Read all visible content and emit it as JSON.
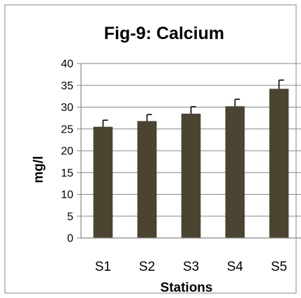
{
  "chart_data": {
    "type": "bar",
    "title": "Fig-9: Calcium",
    "xlabel": "Stations",
    "ylabel": "mg/l",
    "categories": [
      "S1",
      "S2",
      "S3",
      "S4",
      "S5"
    ],
    "values": [
      25.5,
      26.8,
      28.5,
      30.2,
      34.2
    ],
    "error_upper": [
      1.5,
      1.5,
      1.6,
      1.6,
      2.0
    ],
    "yticks": [
      "0",
      "5",
      "10",
      "15",
      "20",
      "25",
      "30",
      "35",
      "40"
    ],
    "ylim": [
      0,
      40
    ],
    "grid": true,
    "legend": "none",
    "colors": {
      "bar": "#4a4430",
      "grid": "#878787",
      "axis": "#878787",
      "frame": "#878787",
      "error": "#000000"
    }
  }
}
